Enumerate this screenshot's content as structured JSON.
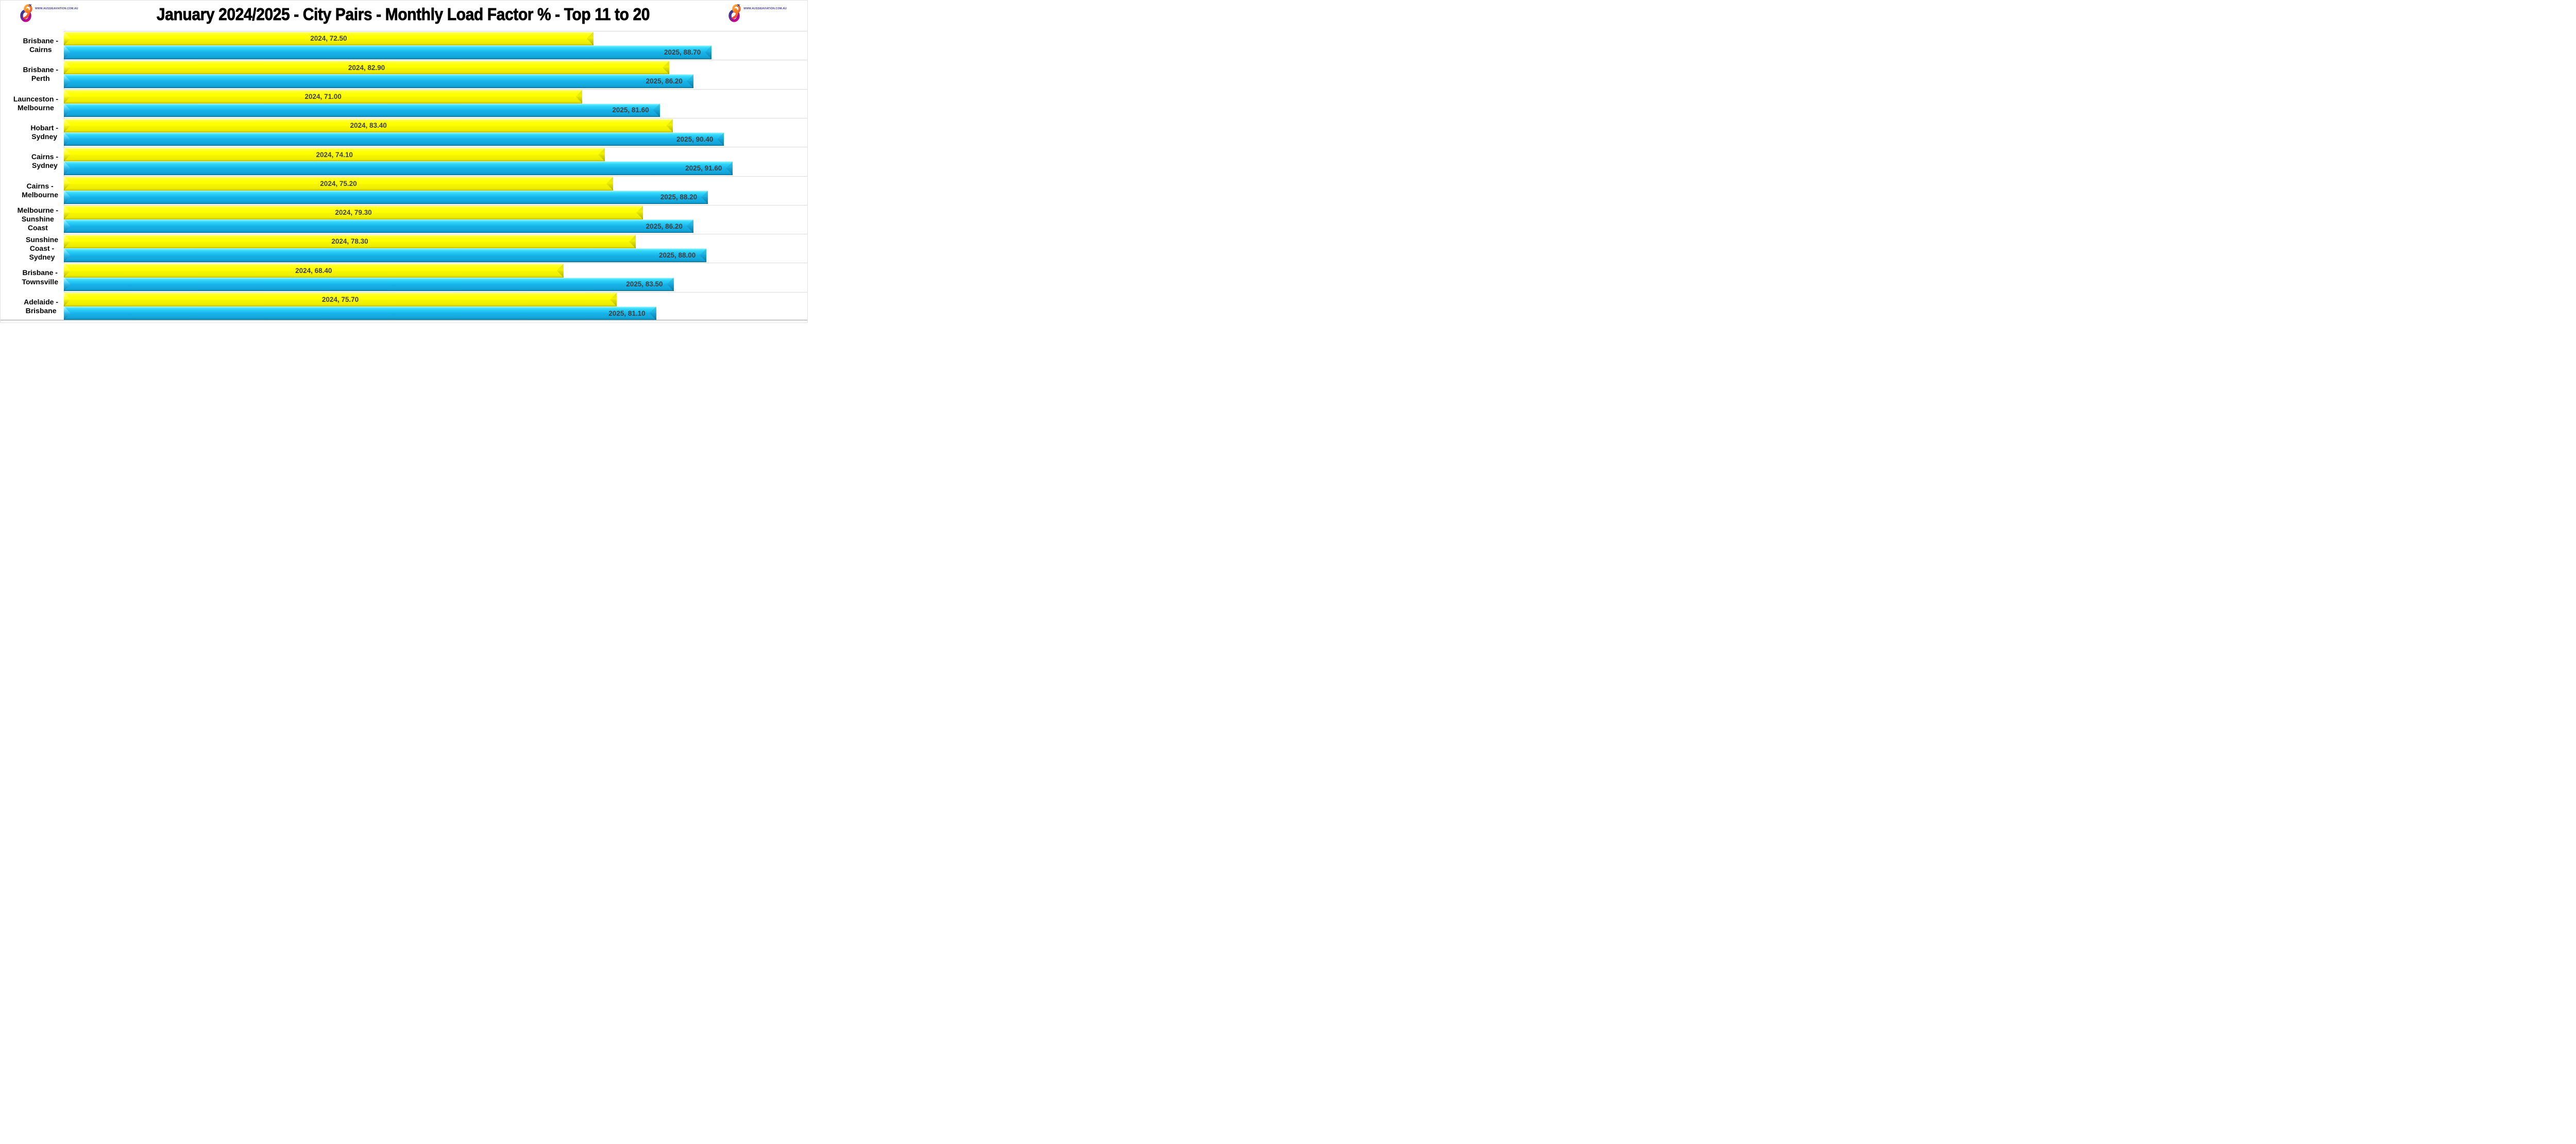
{
  "header": {
    "title": "January 2024/2025 - City Pairs - Monthly Load Factor % - Top 11 to 20"
  },
  "brand": {
    "url": "WWW.AUSSIEAVIATION.COM.AU",
    "icon": "aussie-aviation-figure8-plane-logo",
    "colors": {
      "orange": "#F7941D",
      "red": "#EF4136",
      "navy": "#2B3990",
      "magenta": "#C4008F",
      "text": "#3D3A94"
    }
  },
  "chart_data": {
    "type": "bar",
    "orientation": "horizontal",
    "title": "January 2024/2025 - City Pairs - Monthly Load Factor % - Top 11 to 20",
    "categories": [
      "Brisbane - Cairns",
      "Brisbane - Perth",
      "Launceston - Melbourne",
      "Hobart - Sydney",
      "Cairns - Sydney",
      "Cairns - Melbourne",
      "Melbourne - Sunshine Coast",
      "Sunshine Coast - Sydney",
      "Brisbane - Townsville",
      "Adelaide - Brisbane"
    ],
    "categories_display": [
      "Brisbane -\nCairns",
      "Brisbane -\nPerth",
      "Launceston -\nMelbourne",
      "Hobart -\nSydney",
      "Cairns -\nSydney",
      "Cairns -\nMelbourne",
      "Melbourne -\nSunshine\nCoast",
      "Sunshine\nCoast -\nSydney",
      "Brisbane -\nTownsville",
      "Adelaide -\nBrisbane"
    ],
    "series": [
      {
        "name": "2024",
        "color": "#FFFF00",
        "values": [
          72.5,
          82.9,
          71.0,
          83.4,
          74.1,
          75.2,
          79.3,
          78.3,
          68.4,
          75.7
        ]
      },
      {
        "name": "2025",
        "color": "#1CB8EC",
        "values": [
          88.7,
          86.2,
          81.6,
          90.4,
          91.6,
          88.2,
          86.2,
          88.0,
          83.5,
          81.1
        ]
      }
    ],
    "bar_labels": [
      [
        "2024, 72.50",
        "2025, 88.70"
      ],
      [
        "2024, 82.90",
        "2025, 86.20"
      ],
      [
        "2024, 71.00",
        "2025, 81.60"
      ],
      [
        "2024, 83.40",
        "2025, 90.40"
      ],
      [
        "2024, 74.10",
        "2025, 91.60"
      ],
      [
        "2024, 75.20",
        "2025, 88.20"
      ],
      [
        "2024, 79.30",
        "2025, 86.20"
      ],
      [
        "2024, 78.30",
        "2025, 88.00"
      ],
      [
        "2024, 68.40",
        "2025, 83.50"
      ],
      [
        "2024, 75.70",
        "2025, 81.10"
      ]
    ],
    "value_label_color": "#3F3F3F",
    "xlabel": "",
    "ylabel": "",
    "xlim": [
      0,
      101.8
    ],
    "grid": true,
    "gridline_color": "#DCDCDC",
    "legend": "none"
  }
}
